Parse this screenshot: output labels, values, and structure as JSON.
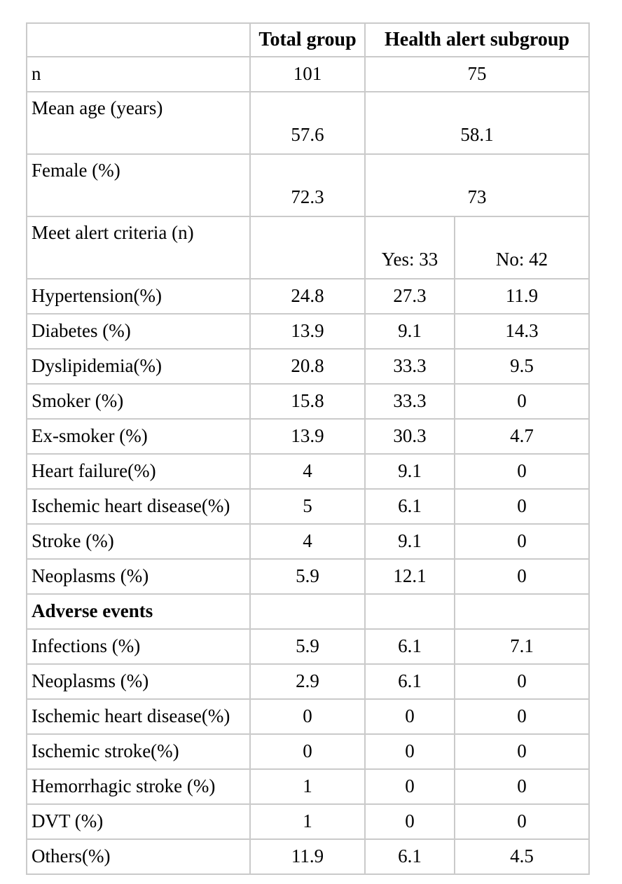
{
  "table": {
    "border_color": "#cacaca",
    "background_color": "#ffffff",
    "text_color": "#000000",
    "header": {
      "corner": "",
      "total_group": "Total group",
      "health_alert_subgroup": "Health alert subgroup"
    },
    "subgroup_split_labels": {
      "yes": "Yes: 33",
      "no": "No: 42"
    },
    "rows": [
      {
        "type": "merged",
        "label": "n",
        "total": "101",
        "subgroup": "75"
      },
      {
        "type": "merged-tall",
        "label": "Mean age (years)",
        "total": "57.6",
        "subgroup": "58.1"
      },
      {
        "type": "merged-tall",
        "label": "Female (%)",
        "total": "72.3",
        "subgroup": "73"
      },
      {
        "type": "split-tall",
        "label": "Meet alert criteria (n)",
        "total": "",
        "yes": "Yes: 33",
        "no": "No: 42"
      },
      {
        "type": "data",
        "label": "Hypertension(%)",
        "total": "24.8",
        "yes": "27.3",
        "no": "11.9"
      },
      {
        "type": "data",
        "label": "Diabetes (%)",
        "total": "13.9",
        "yes": "9.1",
        "no": "14.3"
      },
      {
        "type": "data",
        "label": "Dyslipidemia(%)",
        "total": "20.8",
        "yes": "33.3",
        "no": "9.5"
      },
      {
        "type": "data",
        "label": "Smoker (%)",
        "total": "15.8",
        "yes": "33.3",
        "no": "0"
      },
      {
        "type": "data",
        "label": "Ex-smoker (%)",
        "total": "13.9",
        "yes": "30.3",
        "no": "4.7"
      },
      {
        "type": "data",
        "label": "Heart failure(%)",
        "total": "4",
        "yes": "9.1",
        "no": "0"
      },
      {
        "type": "data",
        "label": "Ischemic heart disease(%)",
        "total": "5",
        "yes": "6.1",
        "no": "0"
      },
      {
        "type": "data",
        "label": "Stroke (%)",
        "total": "4",
        "yes": "9.1",
        "no": "0"
      },
      {
        "type": "data",
        "label": "Neoplasms (%)",
        "total": "5.9",
        "yes": "12.1",
        "no": "0"
      },
      {
        "type": "section",
        "label": "Adverse events",
        "total": "",
        "yes": "",
        "no": ""
      },
      {
        "type": "data",
        "label": "Infections (%)",
        "total": "5.9",
        "yes": "6.1",
        "no": "7.1"
      },
      {
        "type": "data",
        "label": "Neoplasms (%)",
        "total": "2.9",
        "yes": "6.1",
        "no": "0"
      },
      {
        "type": "data",
        "label": "Ischemic heart disease(%)",
        "total": "0",
        "yes": "0",
        "no": "0"
      },
      {
        "type": "data",
        "label": "Ischemic stroke(%)",
        "total": "0",
        "yes": "0",
        "no": "0"
      },
      {
        "type": "data",
        "label": "Hemorrhagic stroke (%)",
        "total": "1",
        "yes": "0",
        "no": "0"
      },
      {
        "type": "data",
        "label": "DVT (%)",
        "total": "1",
        "yes": "0",
        "no": "0"
      },
      {
        "type": "data",
        "label": "Others(%)",
        "total": "11.9",
        "yes": "6.1",
        "no": "4.5"
      }
    ]
  }
}
